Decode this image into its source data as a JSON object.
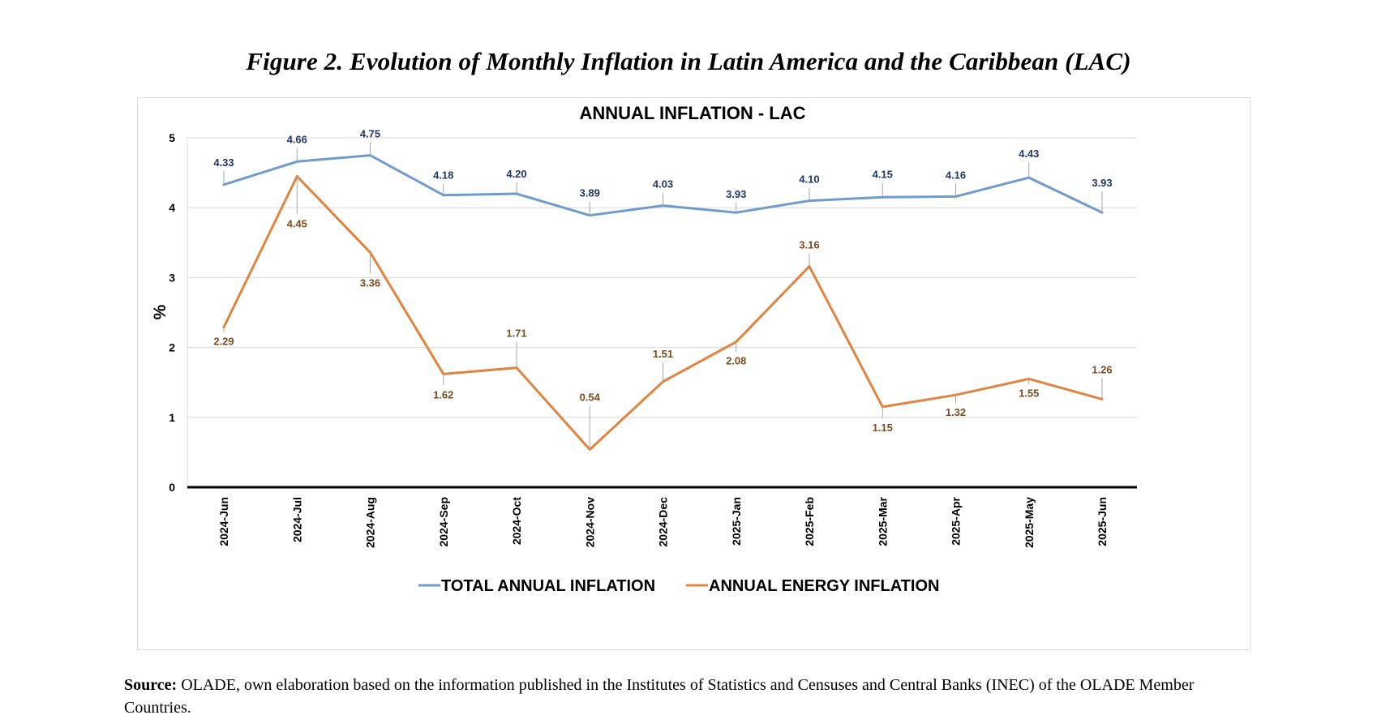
{
  "figure_title": "Figure 2. Evolution of Monthly Inflation in Latin America and the Caribbean (LAC)",
  "source_label": "Source:",
  "source_text": " OLADE, own elaboration based on the information published in the Institutes of Statistics and Censuses and Central Banks (INEC) of the OLADE Member Countries.",
  "chart_data": {
    "type": "line",
    "title": "ANNUAL INFLATION  - LAC",
    "xlabel": "",
    "ylabel": "%",
    "ylim": [
      0,
      5
    ],
    "yticks": [
      0,
      1,
      2,
      3,
      4,
      5
    ],
    "grid": true,
    "legend_position": "bottom",
    "categories": [
      "2024-Jun",
      "2024-Jul",
      "2024-Aug",
      "2024-Sep",
      "2024-Oct",
      "2024-Nov",
      "2024-Dec",
      "2025-Jan",
      "2025-Feb",
      "2025-Mar",
      "2025-Apr",
      "2025-May",
      "2025-Jun"
    ],
    "series": [
      {
        "name": "TOTAL ANNUAL INFLATION",
        "color": "#6f9bcd",
        "label_color": "#1f3864",
        "values": [
          4.33,
          4.66,
          4.75,
          4.18,
          4.2,
          3.89,
          4.03,
          3.93,
          4.1,
          4.15,
          4.16,
          4.43,
          3.93
        ],
        "labels": [
          "4.33",
          "4.66",
          "4.75",
          "4.18",
          "4.20",
          "3.89",
          "4.03",
          "3.93",
          "4.10",
          "4.15",
          "4.16",
          "4.43",
          "3.93"
        ]
      },
      {
        "name": "ANNUAL ENERGY INFLATION",
        "color": "#e0843f",
        "label_color": "#7b4a1f",
        "values": [
          2.29,
          4.45,
          3.36,
          1.62,
          1.71,
          0.54,
          1.51,
          2.08,
          3.16,
          1.15,
          1.32,
          1.55,
          1.26
        ],
        "labels": [
          "2.29",
          "4.45",
          "3.36",
          "1.62",
          "1.71",
          "0.54",
          "1.51",
          "2.08",
          "3.16",
          "1.15",
          "1.32",
          "1.55",
          "1.26"
        ]
      }
    ]
  }
}
